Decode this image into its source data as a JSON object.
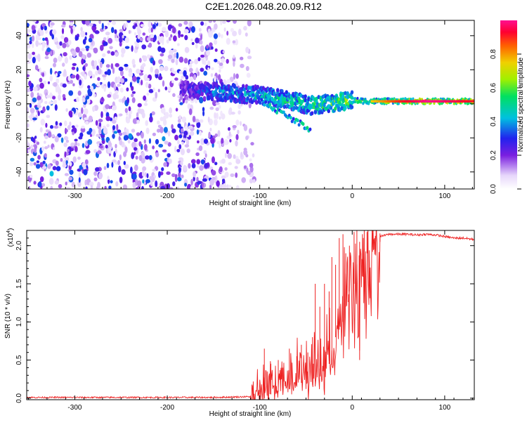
{
  "title": "C2E1.2026.048.20.09.R12",
  "top_chart": {
    "type": "heatmap",
    "xlabel": "Height of straight line (km)",
    "ylabel": "Frequency (Hz)",
    "xlim": [
      -352,
      132
    ],
    "ylim": [
      -50,
      49
    ],
    "xticks": [
      "-300",
      "-200",
      "-100",
      "0",
      "100"
    ],
    "yticks": [
      "-40",
      "-20",
      "0",
      "20",
      "40"
    ],
    "colorbar": {
      "label": "Normalized spectral amplitude",
      "range": [
        0,
        1
      ],
      "ticks": [
        "0.0",
        "0.2",
        "0.4",
        "0.6",
        "0.8"
      ]
    }
  },
  "chart_data": [
    {
      "type": "heatmap",
      "title": "C2E1.2026.048.20.09.R12",
      "xlabel": "Height of straight line (km)",
      "ylabel": "Frequency (Hz)",
      "xlim": [
        -352,
        132
      ],
      "ylim": [
        -50,
        49
      ],
      "ridge": {
        "x": [
          -180,
          -150,
          -120,
          -100,
          -80,
          -60,
          -45,
          -30,
          -15,
          0,
          20,
          50,
          80,
          110,
          132
        ],
        "frequency": [
          8,
          7,
          6,
          5,
          3,
          1,
          -1,
          0,
          1,
          2,
          1.5,
          1.5,
          1.5,
          1.5,
          1.5
        ],
        "amplitude": [
          0.3,
          0.45,
          0.5,
          0.55,
          0.6,
          0.6,
          0.65,
          0.7,
          0.75,
          0.7,
          0.75,
          0.9,
          1.0,
          0.95,
          0.9
        ]
      },
      "noise_region": {
        "x": [
          -352,
          -130
        ],
        "frequency": [
          -50,
          49
        ],
        "amplitude": [
          0.05,
          0.35
        ]
      }
    },
    {
      "type": "line",
      "xlabel": "Height of straight line (km)",
      "ylabel": "SNR (10 * v/v)",
      "multiplier": "(x10⁴)",
      "xlim": [
        -352,
        132
      ],
      "ylim": [
        -0.02,
        2.2
      ],
      "xticks": [
        "-300",
        "-200",
        "-100",
        "0",
        "100"
      ],
      "yticks": [
        "0.0",
        "0.5",
        "1.0",
        "1.5",
        "2.0"
      ],
      "series": [
        {
          "name": "SNR",
          "color": "#ee2222",
          "x": [
            -352,
            -300,
            -250,
            -200,
            -150,
            -110,
            -100,
            -90,
            -80,
            -70,
            -60,
            -50,
            -40,
            -30,
            -20,
            -15,
            -10,
            -5,
            0,
            5,
            10,
            15,
            20,
            30,
            40,
            50,
            60,
            70,
            80,
            90,
            100,
            110,
            120,
            132
          ],
          "y": [
            0.01,
            0.01,
            0.01,
            0.01,
            0.01,
            0.02,
            0.12,
            0.18,
            0.25,
            0.28,
            0.35,
            0.38,
            0.42,
            0.5,
            0.7,
            0.95,
            1.3,
            1.5,
            1.75,
            1.85,
            1.8,
            1.95,
            2.0,
            2.12,
            2.15,
            2.15,
            2.15,
            2.14,
            2.15,
            2.14,
            2.12,
            2.1,
            2.1,
            2.08
          ]
        }
      ],
      "spikes": {
        "x": [
          -95,
          -88,
          -80,
          -75,
          -68,
          -60,
          -55,
          -48,
          -43,
          -40,
          -35,
          -30,
          -25,
          -22,
          -18,
          -14,
          -10,
          -7,
          -3,
          2,
          5,
          8,
          11,
          13,
          16,
          24,
          30
        ],
        "low": [
          0.0,
          0.05,
          0.08,
          0.1,
          0.12,
          0.15,
          0.2,
          0.2,
          0.25,
          0.22,
          0.3,
          0.35,
          0.45,
          0.5,
          0.8,
          0.9,
          1.0,
          1.2,
          1.4,
          1.5,
          1.55,
          0.5,
          1.6,
          1.8,
          1.9,
          1.95,
          2.05
        ],
        "high": [
          0.65,
          0.45,
          0.5,
          0.4,
          0.65,
          0.55,
          0.7,
          0.6,
          0.8,
          1.5,
          1.2,
          1.5,
          1.4,
          1.85,
          1.75,
          2.1,
          2.15,
          1.9,
          2.0,
          2.18,
          2.2,
          2.05,
          2.15,
          2.2,
          2.18,
          2.1,
          2.16
        ]
      }
    }
  ],
  "bottom_chart": {
    "xlabel": "Height of straight line (km)",
    "ylabel": "SNR (10 * v/v)",
    "multiplier_prefix": "(x10",
    "multiplier_exp": "4",
    "multiplier_suffix": ")"
  }
}
